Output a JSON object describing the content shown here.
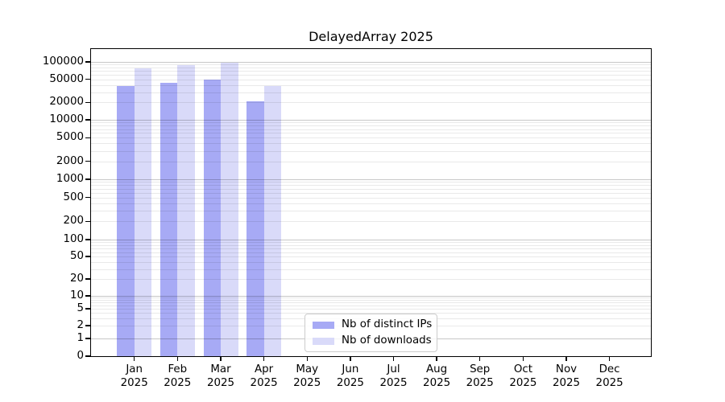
{
  "chart_data": {
    "type": "bar",
    "title": "DelayedArray 2025",
    "x_months": [
      "Jan",
      "Feb",
      "Mar",
      "Apr",
      "May",
      "Jun",
      "Jul",
      "Aug",
      "Sep",
      "Oct",
      "Nov",
      "Dec"
    ],
    "x_year": "2025",
    "series": [
      {
        "name": "Nb of distinct IPs",
        "color": "#a7aaf5",
        "values": [
          38000,
          44000,
          49000,
          21000,
          null,
          null,
          null,
          null,
          null,
          null,
          null,
          null
        ]
      },
      {
        "name": "Nb of downloads",
        "color": "#d9daf9",
        "values": [
          77000,
          87000,
          97000,
          38000,
          null,
          null,
          null,
          null,
          null,
          null,
          null,
          null
        ]
      }
    ],
    "y_axis": {
      "scale": "symlog",
      "ticks": [
        0,
        1,
        2,
        5,
        10,
        20,
        50,
        100,
        200,
        500,
        1000,
        2000,
        5000,
        10000,
        20000,
        50000,
        100000
      ]
    },
    "grid": true,
    "legend_position": "lower center"
  }
}
